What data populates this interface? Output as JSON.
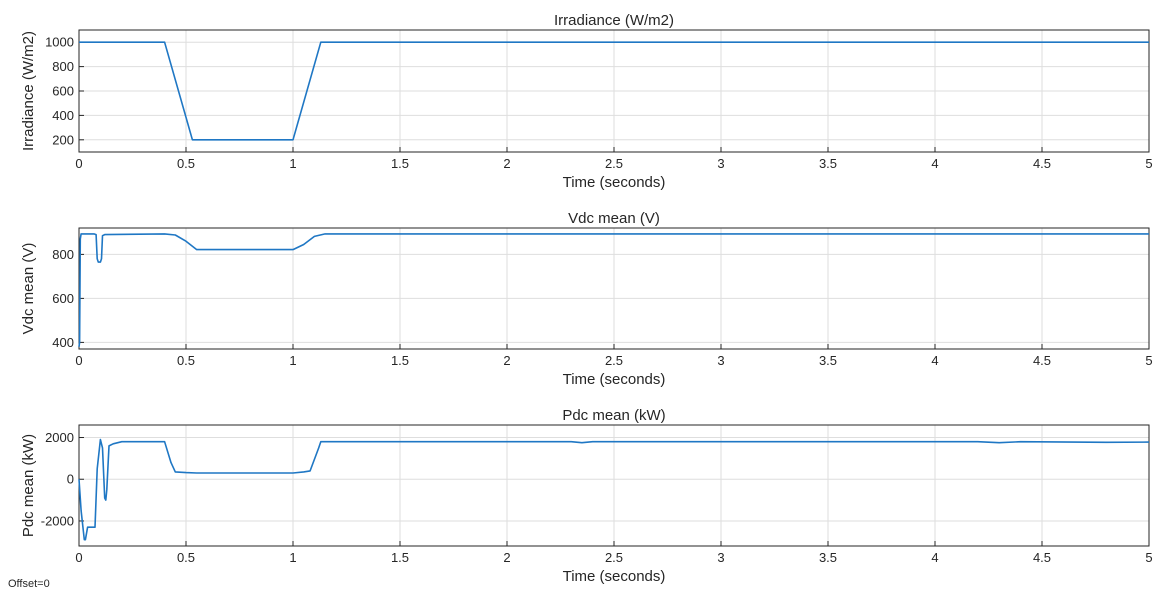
{
  "footer": {
    "offset_text": "Offset=0"
  },
  "style": {
    "series_color": "#1f77c4",
    "grid_color": "#dedede",
    "axis_color": "#262626"
  },
  "chart_data": [
    {
      "type": "line",
      "title": "Irradiance (W/m2)",
      "xlabel": "Time (seconds)",
      "ylabel": "Irradiance (W/m2)",
      "xlim": [
        0,
        5
      ],
      "ylim": [
        100,
        1100
      ],
      "xticks": [
        0,
        0.5,
        1,
        1.5,
        2,
        2.5,
        3,
        3.5,
        4,
        4.5,
        5
      ],
      "xtick_labels": [
        "0",
        "0.5",
        "1",
        "1.5",
        "2",
        "2.5",
        "3",
        "3.5",
        "4",
        "4.5",
        "5"
      ],
      "yticks": [
        200,
        400,
        600,
        800,
        1000
      ],
      "ytick_labels": [
        "200",
        "400",
        "600",
        "800",
        "1000"
      ],
      "grid": true,
      "series": [
        {
          "x": [
            0,
            0.4,
            0.53,
            0.55,
            1.0,
            1.13,
            5.0
          ],
          "y": [
            1000,
            1000,
            200,
            200,
            200,
            1000,
            1000
          ]
        }
      ]
    },
    {
      "type": "line",
      "title": "Vdc mean (V)",
      "xlabel": "Time (seconds)",
      "ylabel": "Vdc mean (V)",
      "xlim": [
        0,
        5
      ],
      "ylim": [
        370,
        920
      ],
      "xticks": [
        0,
        0.5,
        1,
        1.5,
        2,
        2.5,
        3,
        3.5,
        4,
        4.5,
        5
      ],
      "xtick_labels": [
        "0",
        "0.5",
        "1",
        "1.5",
        "2",
        "2.5",
        "3",
        "3.5",
        "4",
        "4.5",
        "5"
      ],
      "yticks": [
        400,
        600,
        800
      ],
      "ytick_labels": [
        "400",
        "600",
        "800"
      ],
      "grid": true,
      "series": [
        {
          "x": [
            0,
            0.003,
            0.006,
            0.01,
            0.07,
            0.08,
            0.085,
            0.09,
            0.1,
            0.105,
            0.11,
            0.12,
            0.4,
            0.45,
            0.5,
            0.55,
            1.0,
            1.05,
            1.1,
            1.15,
            5.0
          ],
          "y": [
            380,
            400,
            870,
            893,
            893,
            890,
            780,
            765,
            765,
            780,
            885,
            890,
            893,
            888,
            860,
            822,
            822,
            845,
            882,
            893,
            893
          ]
        }
      ]
    },
    {
      "type": "line",
      "title": "Pdc mean (kW)",
      "xlabel": "Time (seconds)",
      "ylabel": "Pdc mean (kW)",
      "xlim": [
        0,
        5
      ],
      "ylim": [
        -3200,
        2600
      ],
      "xticks": [
        0,
        0.5,
        1,
        1.5,
        2,
        2.5,
        3,
        3.5,
        4,
        4.5,
        5
      ],
      "xtick_labels": [
        "0",
        "0.5",
        "1",
        "1.5",
        "2",
        "2.5",
        "3",
        "3.5",
        "4",
        "4.5",
        "5"
      ],
      "yticks": [
        -2000,
        0,
        2000
      ],
      "ytick_labels": [
        "-2000",
        "0",
        "2000"
      ],
      "grid": true,
      "series": [
        {
          "x": [
            0,
            0.01,
            0.025,
            0.03,
            0.04,
            0.05,
            0.075,
            0.085,
            0.1,
            0.11,
            0.12,
            0.125,
            0.13,
            0.14,
            0.16,
            0.2,
            0.4,
            0.43,
            0.45,
            0.5,
            0.55,
            1.0,
            1.05,
            1.08,
            1.12,
            1.13,
            1.2,
            2.3,
            2.35,
            2.4,
            3.0,
            4.2,
            4.3,
            4.4,
            4.8,
            5.0
          ],
          "y": [
            0,
            -1500,
            -2900,
            -2900,
            -2300,
            -2300,
            -2300,
            500,
            1900,
            1500,
            -900,
            -1000,
            -500,
            1600,
            1700,
            1800,
            1800,
            800,
            350,
            320,
            300,
            300,
            350,
            400,
            1500,
            1800,
            1800,
            1800,
            1750,
            1800,
            1800,
            1800,
            1750,
            1800,
            1770,
            1780
          ]
        }
      ]
    }
  ]
}
